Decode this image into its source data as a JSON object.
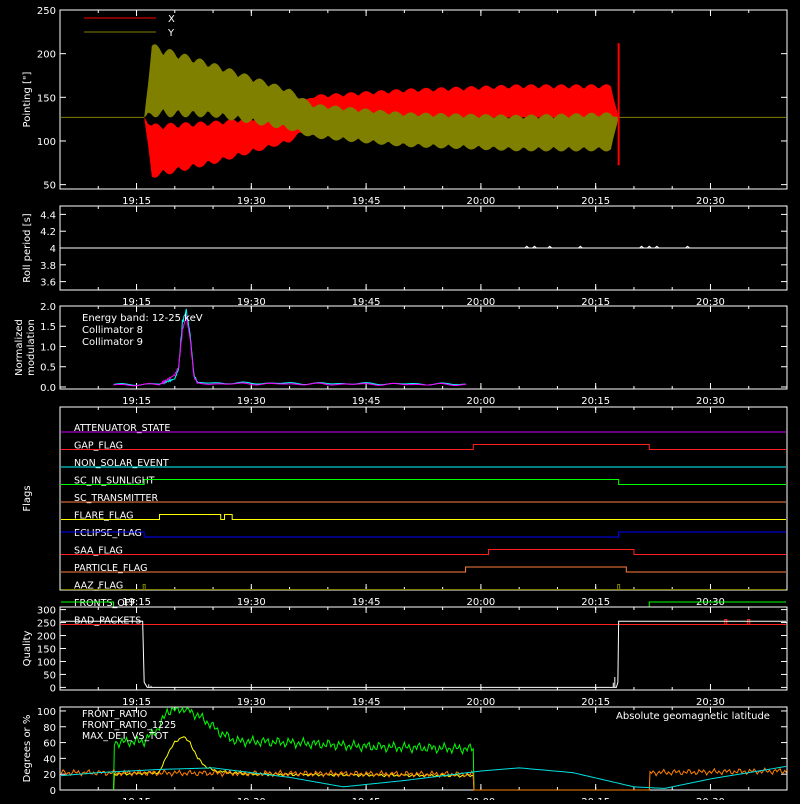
{
  "chart_data": [
    {
      "type": "line",
      "ylabel": "Pointing [\"]",
      "ylim": [
        45,
        250
      ],
      "yticks": [
        50,
        100,
        150,
        200,
        250
      ],
      "xticks": [
        "19:15",
        "19:30",
        "19:45",
        "20:00",
        "20:15",
        "20:30"
      ],
      "series": [
        {
          "name": "X",
          "color": "#ff0000"
        },
        {
          "name": "Y",
          "color": "#808000"
        }
      ],
      "points": [
        {
          "t": "19:05",
          "x_lo": 127,
          "x_hi": 127,
          "y_lo": 127,
          "y_hi": 127
        },
        {
          "t": "19:16",
          "x_lo": 127,
          "x_hi": 127,
          "y_lo": 127,
          "y_hi": 127
        },
        {
          "t": "19:17",
          "x_lo": 57,
          "x_hi": 120,
          "y_lo": 127,
          "y_hi": 212
        },
        {
          "t": "19:25",
          "x_lo": 73,
          "x_hi": 123,
          "y_lo": 127,
          "y_hi": 190
        },
        {
          "t": "19:35",
          "x_lo": 98,
          "x_hi": 133,
          "y_lo": 112,
          "y_hi": 160
        },
        {
          "t": "19:38",
          "x_lo": 117,
          "x_hi": 153,
          "y_lo": 103,
          "y_hi": 143
        },
        {
          "t": "19:50",
          "x_lo": 120,
          "x_hi": 160,
          "y_lo": 93,
          "y_hi": 133
        },
        {
          "t": "20:05",
          "x_lo": 123,
          "x_hi": 165,
          "y_lo": 88,
          "y_hi": 130
        },
        {
          "t": "20:17",
          "x_lo": 120,
          "x_hi": 165,
          "y_lo": 88,
          "y_hi": 133
        },
        {
          "t": "20:18",
          "x_lo": 127,
          "x_hi": 127,
          "y_lo": 127,
          "y_hi": 127
        },
        {
          "t": "20:40",
          "x_lo": 127,
          "x_hi": 127,
          "y_lo": 127,
          "y_hi": 127
        }
      ],
      "spikes": [
        {
          "t": "20:18",
          "y0": 72,
          "y1": 212,
          "color": "#ff0000"
        }
      ]
    },
    {
      "type": "line",
      "ylabel": "Roll period [s]",
      "ylim": [
        3.5,
        4.5
      ],
      "yticks": [
        3.6,
        3.8,
        4.0,
        4.2,
        4.4
      ],
      "xticks": [
        "19:15",
        "19:30",
        "19:45",
        "20:00",
        "20:15",
        "20:30"
      ],
      "series": [
        {
          "name": "",
          "color": "#ffffff",
          "points": [
            [
              "19:05",
              4.0
            ],
            [
              "20:40",
              4.0
            ]
          ]
        }
      ],
      "bumps": [
        "20:06",
        "20:07",
        "20:09",
        "20:13",
        "20:21",
        "20:22",
        "20:23",
        "20:27"
      ]
    },
    {
      "type": "line",
      "ylabel": "Normalized modulation",
      "ylim": [
        -0.05,
        2.0
      ],
      "yticks": [
        0.0,
        0.5,
        1.0,
        1.5,
        2.0
      ],
      "yticklabels": [
        "0.0",
        "0.5",
        "1.0",
        "1.5",
        "2.0"
      ],
      "xticks": [
        "19:15",
        "19:30",
        "19:45",
        "20:00",
        "20:15",
        "20:30"
      ],
      "annotation": "Energy band: 12-25 keV",
      "series": [
        {
          "name": "Collimator 8",
          "color": "#00ffff",
          "points": [
            [
              "19:12",
              0.06
            ],
            [
              "19:18",
              0.07
            ],
            [
              "19:20",
              0.2
            ],
            [
              "19:20.5",
              0.45
            ],
            [
              "19:21",
              1.6
            ],
            [
              "19:21.5",
              1.9
            ],
            [
              "19:22",
              1.3
            ],
            [
              "19:22.5",
              0.3
            ],
            [
              "19:23",
              0.1
            ],
            [
              "19:58",
              0.07
            ]
          ]
        },
        {
          "name": "Collimator 9",
          "color": "#ff00ff",
          "points": [
            [
              "19:12",
              0.05
            ],
            [
              "19:18",
              0.06
            ],
            [
              "19:20",
              0.3
            ],
            [
              "19:20.5",
              0.5
            ],
            [
              "19:21",
              1.4
            ],
            [
              "19:21.5",
              1.75
            ],
            [
              "19:22",
              1.2
            ],
            [
              "19:22.5",
              0.25
            ],
            [
              "19:23",
              0.08
            ],
            [
              "19:58",
              0.06
            ]
          ]
        }
      ]
    },
    {
      "type": "line",
      "ylabel": "Flags",
      "xticks": [
        "19:15",
        "19:30",
        "19:45",
        "20:00",
        "20:15",
        "20:30"
      ],
      "flags": [
        {
          "name": "ATTENUATOR_STATE",
          "color": "#cc00ff",
          "steps": []
        },
        {
          "name": "GAP_FLAG",
          "color": "#ff2020",
          "steps": [
            [
              "19:59",
              1
            ],
            [
              "20:22",
              0
            ]
          ]
        },
        {
          "name": "NON_SOLAR_EVENT",
          "color": "#00ffff",
          "steps": []
        },
        {
          "name": "SC_IN_SUNLIGHT",
          "color": "#00ff00",
          "init": 0,
          "steps": [
            [
              "19:16",
              1
            ],
            [
              "20:18",
              0
            ]
          ]
        },
        {
          "name": "SC_TRANSMITTER",
          "color": "#ff8040",
          "steps": []
        },
        {
          "name": "FLARE_FLAG",
          "color": "#ffff00",
          "steps": [
            [
              "19:18",
              1
            ],
            [
              "19:26",
              0
            ],
            [
              "19:26.5",
              1
            ],
            [
              "19:27.5",
              0
            ]
          ]
        },
        {
          "name": "ECLIPSE_FLAG",
          "color": "#0000ff",
          "init": 1,
          "steps": [
            [
              "19:16",
              0
            ],
            [
              "20:18",
              1
            ]
          ]
        },
        {
          "name": "SAA_FLAG",
          "color": "#ff2020",
          "steps": [
            [
              "20:01",
              1
            ],
            [
              "20:20",
              0
            ]
          ]
        },
        {
          "name": "PARTICLE_FLAG",
          "color": "#ff8040",
          "steps": [
            [
              "19:58",
              1
            ],
            [
              "20:19",
              0
            ]
          ]
        },
        {
          "name": "AAZ_FLAG",
          "color": "#808000",
          "pulses": [
            "19:16",
            "20:18"
          ]
        },
        {
          "name": "FRONTS_OFF",
          "color": "#00ff00",
          "init": 1,
          "steps": [
            [
              "19:12",
              0
            ],
            [
              "20:22",
              1
            ]
          ]
        },
        {
          "name": "BAD_PACKETS",
          "color": "#ff2020",
          "pulses": [
            "20:32",
            "20:35"
          ]
        }
      ]
    },
    {
      "type": "line",
      "ylabel": "Quality",
      "ylim": [
        -10,
        310
      ],
      "yticks": [
        0,
        50,
        100,
        150,
        200,
        250,
        300
      ],
      "xticks": [
        "19:15",
        "19:30",
        "19:45",
        "20:00",
        "20:15",
        "20:30"
      ],
      "series": [
        {
          "name": "",
          "color": "#ffffff",
          "points": [
            [
              "19:05",
              255
            ],
            [
              "19:15.8",
              255
            ],
            [
              "19:16",
              20
            ],
            [
              "19:16.2",
              10
            ],
            [
              "19:16.4",
              0
            ],
            [
              "20:17.7",
              0
            ],
            [
              "20:17.9",
              20
            ],
            [
              "20:18",
              255
            ],
            [
              "20:40",
              255
            ]
          ]
        }
      ]
    },
    {
      "type": "line",
      "ylabel": "Degrees or %",
      "ylim": [
        0,
        105
      ],
      "yticks": [
        0,
        20,
        40,
        60,
        80,
        100
      ],
      "xticks": [
        "19:15",
        "19:30",
        "19:45",
        "20:00",
        "20:15",
        "20:30"
      ],
      "annotation": "Absolute geomagnetic latitude",
      "series": [
        {
          "name": "FRONT_RATIO",
          "color": "#ffff00",
          "points": [
            [
              "19:12",
              0
            ],
            [
              "19:12.1",
              20
            ],
            [
              "19:18",
              22
            ],
            [
              "19:19",
              45
            ],
            [
              "19:20",
              60
            ],
            [
              "19:21",
              68
            ],
            [
              "19:22",
              60
            ],
            [
              "19:23",
              40
            ],
            [
              "19:24",
              30
            ],
            [
              "19:25",
              25
            ],
            [
              "19:27",
              22
            ],
            [
              "19:30",
              20
            ],
            [
              "19:59",
              18
            ],
            [
              "19:59.1",
              0
            ]
          ]
        },
        {
          "name": "FRONT_RATIO_1225",
          "color": "#00ff00",
          "points": [
            [
              "19:12",
              0
            ],
            [
              "19:12.1",
              60
            ],
            [
              "19:16",
              62
            ],
            [
              "19:18",
              80
            ],
            [
              "19:19",
              100
            ],
            [
              "19:21",
              103
            ],
            [
              "19:22",
              100
            ],
            [
              "19:24",
              88
            ],
            [
              "19:26",
              72
            ],
            [
              "19:28",
              62
            ],
            [
              "19:35",
              60
            ],
            [
              "19:45",
              55
            ],
            [
              "19:59",
              52
            ],
            [
              "19:59.1",
              0
            ]
          ]
        },
        {
          "name": "MAX_DET_VS_TOT",
          "color": "#ff8000",
          "points": [
            [
              "19:05",
              22
            ],
            [
              "19:59",
              20
            ],
            [
              "19:59.1",
              0
            ],
            [
              "20:22",
              0
            ],
            [
              "20:22.1",
              22
            ],
            [
              "20:40",
              24
            ]
          ]
        },
        {
          "name": "",
          "color": "#00e0e0",
          "points": [
            [
              "19:05",
              18
            ],
            [
              "19:10",
              22
            ],
            [
              "19:18",
              26
            ],
            [
              "19:25",
              28
            ],
            [
              "19:35",
              16
            ],
            [
              "19:42",
              4
            ],
            [
              "19:50",
              12
            ],
            [
              "20:00",
              24
            ],
            [
              "20:05",
              28
            ],
            [
              "20:12",
              22
            ],
            [
              "20:20",
              4
            ],
            [
              "20:24",
              2
            ],
            [
              "20:30",
              14
            ],
            [
              "20:40",
              30
            ]
          ]
        }
      ]
    }
  ]
}
